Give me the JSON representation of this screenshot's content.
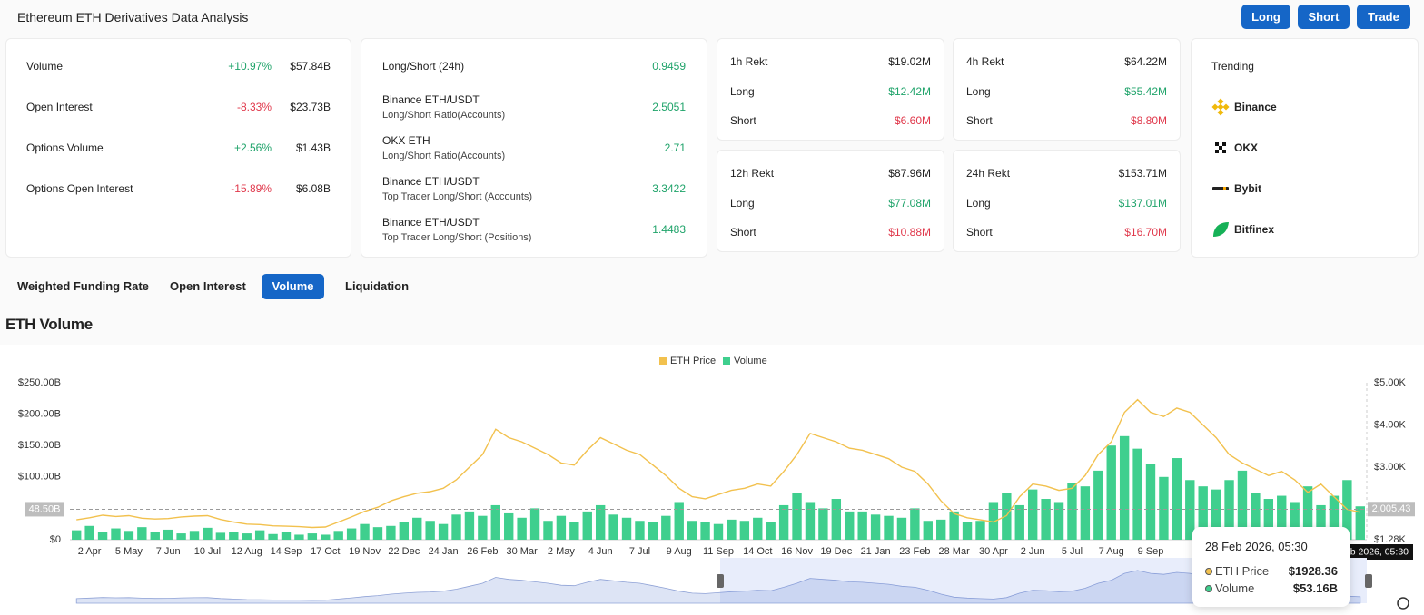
{
  "header": {
    "title": "Ethereum ETH Derivatives Data Analysis",
    "buttons": [
      "Long",
      "Short",
      "Trade"
    ]
  },
  "stats": [
    {
      "label": "Volume",
      "change": "+10.97%",
      "value": "$57.84B"
    },
    {
      "label": "Open Interest",
      "change": "-8.33%",
      "value": "$23.73B"
    },
    {
      "label": "Options Volume",
      "change": "+2.56%",
      "value": "$1.43B"
    },
    {
      "label": "Options Open Interest",
      "change": "-15.89%",
      "value": "$6.08B"
    }
  ],
  "ratios": {
    "main": {
      "label": "Long/Short (24h)",
      "value": "0.9459"
    },
    "rows": [
      {
        "title": "Binance ETH/USDT",
        "sub": "Long/Short Ratio(Accounts)",
        "value": "2.5051"
      },
      {
        "title": "OKX ETH",
        "sub": "Long/Short Ratio(Accounts)",
        "value": "2.71"
      },
      {
        "title": "Binance ETH/USDT",
        "sub": "Top Trader Long/Short (Accounts)",
        "value": "3.3422"
      },
      {
        "title": "Binance ETH/USDT",
        "sub": "Top Trader Long/Short (Positions)",
        "value": "1.4483"
      }
    ]
  },
  "rekt": [
    {
      "title": "1h Rekt",
      "total": "$19.02M",
      "long_label": "Long",
      "long": "$12.42M",
      "short_label": "Short",
      "short": "$6.60M"
    },
    {
      "title": "4h Rekt",
      "total": "$64.22M",
      "long_label": "Long",
      "long": "$55.42M",
      "short_label": "Short",
      "short": "$8.80M"
    },
    {
      "title": "12h Rekt",
      "total": "$87.96M",
      "long_label": "Long",
      "long": "$77.08M",
      "short_label": "Short",
      "short": "$10.88M"
    },
    {
      "title": "24h Rekt",
      "total": "$153.71M",
      "long_label": "Long",
      "long": "$137.01M",
      "short_label": "Short",
      "short": "$16.70M"
    }
  ],
  "trending": {
    "title": "Trending",
    "items": [
      "Binance",
      "OKX",
      "Bybit",
      "Bitfinex"
    ]
  },
  "tabs": {
    "items": [
      "Weighted Funding Rate",
      "Open Interest",
      "Volume",
      "Liquidation"
    ],
    "active": 2
  },
  "section_title": "ETH Volume",
  "tooltip": {
    "date": "28 Feb 2026, 05:30",
    "price_name": "ETH Price",
    "price": "$1928.36",
    "volume_name": "Volume",
    "volume": "$53.16B"
  },
  "chart_data": {
    "type": "combo",
    "categories": [
      null,
      "2 Apr",
      null,
      null,
      "5 May",
      null,
      null,
      "7 Jun",
      null,
      null,
      "10 Jul",
      null,
      null,
      "12 Aug",
      null,
      null,
      "14 Sep",
      null,
      null,
      "17 Oct",
      null,
      null,
      "19 Nov",
      null,
      null,
      "22 Dec",
      null,
      null,
      "24 Jan",
      null,
      null,
      "26 Feb",
      null,
      null,
      "30 Mar",
      null,
      null,
      "2 May",
      null,
      null,
      "4 Jun",
      null,
      null,
      "7 Jul",
      null,
      null,
      "9 Aug",
      null,
      null,
      "11 Sep",
      null,
      null,
      "14 Oct",
      null,
      null,
      "16 Nov",
      null,
      null,
      "19 Dec",
      null,
      null,
      "21 Jan",
      null,
      null,
      "23 Feb",
      null,
      null,
      "28 Mar",
      null,
      null,
      "30 Apr",
      null,
      null,
      "2 Jun",
      null,
      null,
      "5 Jul",
      null,
      null,
      "7 Aug",
      null,
      null,
      "9 Sep",
      null,
      null,
      null,
      null,
      null,
      null,
      null,
      null,
      null,
      null,
      null,
      null,
      null,
      null,
      null,
      null
    ],
    "series": [
      {
        "name": "ETH Price",
        "type": "line",
        "axis": "y2",
        "color": "#f2c14e",
        "values": [
          1750,
          1800,
          1860,
          1830,
          1850,
          1790,
          1770,
          1780,
          1820,
          1840,
          1850,
          1760,
          1700,
          1650,
          1640,
          1610,
          1600,
          1590,
          1570,
          1580,
          1700,
          1820,
          1950,
          2050,
          2200,
          2300,
          2380,
          2420,
          2500,
          2700,
          3000,
          3300,
          3900,
          3700,
          3600,
          3450,
          3300,
          3100,
          3050,
          3400,
          3700,
          3550,
          3400,
          3300,
          3050,
          2800,
          2500,
          2300,
          2250,
          2350,
          2450,
          2500,
          2600,
          2550,
          2900,
          3300,
          3800,
          3700,
          3600,
          3450,
          3400,
          3300,
          3200,
          3000,
          2900,
          2600,
          2200,
          1900,
          1800,
          1750,
          1700,
          1850,
          2300,
          2600,
          2550,
          2450,
          2500,
          2800,
          3300,
          3600,
          4300,
          4600,
          4300,
          4200,
          4400,
          4300,
          4000,
          3700,
          3300,
          3100,
          2950,
          2800,
          2900,
          2700,
          2400,
          2600,
          2300,
          2000,
          1928.36
        ]
      },
      {
        "name": "Volume",
        "type": "bar",
        "color": "#3fcf8e",
        "values": [
          15,
          22,
          12,
          18,
          14,
          20,
          12,
          16,
          10,
          14,
          19,
          11,
          13,
          10,
          15,
          9,
          12,
          8,
          10,
          8,
          14,
          18,
          25,
          20,
          22,
          28,
          35,
          30,
          25,
          40,
          45,
          38,
          55,
          42,
          35,
          50,
          30,
          38,
          28,
          45,
          55,
          40,
          35,
          30,
          28,
          38,
          60,
          30,
          28,
          25,
          32,
          30,
          35,
          28,
          55,
          75,
          60,
          50,
          65,
          45,
          45,
          40,
          38,
          35,
          50,
          30,
          32,
          45,
          28,
          30,
          60,
          75,
          55,
          80,
          65,
          60,
          90,
          85,
          110,
          150,
          165,
          145,
          120,
          100,
          130,
          95,
          85,
          80,
          95,
          110,
          75,
          65,
          70,
          60,
          85,
          55,
          70,
          95,
          53.16
        ]
      }
    ],
    "ylim": [
      0,
      250
    ],
    "yticks": [
      {
        "value": 0,
        "label": "$0"
      },
      {
        "value": 100,
        "label": "$100.00B"
      },
      {
        "value": 150,
        "label": "$150.00B"
      },
      {
        "value": 200,
        "label": "$200.00B"
      },
      {
        "value": 250,
        "label": "$250.00B"
      }
    ],
    "y2lim": [
      1280,
      5000
    ],
    "y2ticks": [
      {
        "value": 1280,
        "label": "$1.28K"
      },
      {
        "value": 3000,
        "label": "$3.00K"
      },
      {
        "value": 4000,
        "label": "$4.00K"
      },
      {
        "value": 5000,
        "label": "$5.00K"
      }
    ],
    "crosshair_y": {
      "value": 48.5,
      "label": "48.50B"
    },
    "crosshair_y2": {
      "value": 2005.43,
      "label": "2,005.43"
    },
    "legend": "top"
  }
}
